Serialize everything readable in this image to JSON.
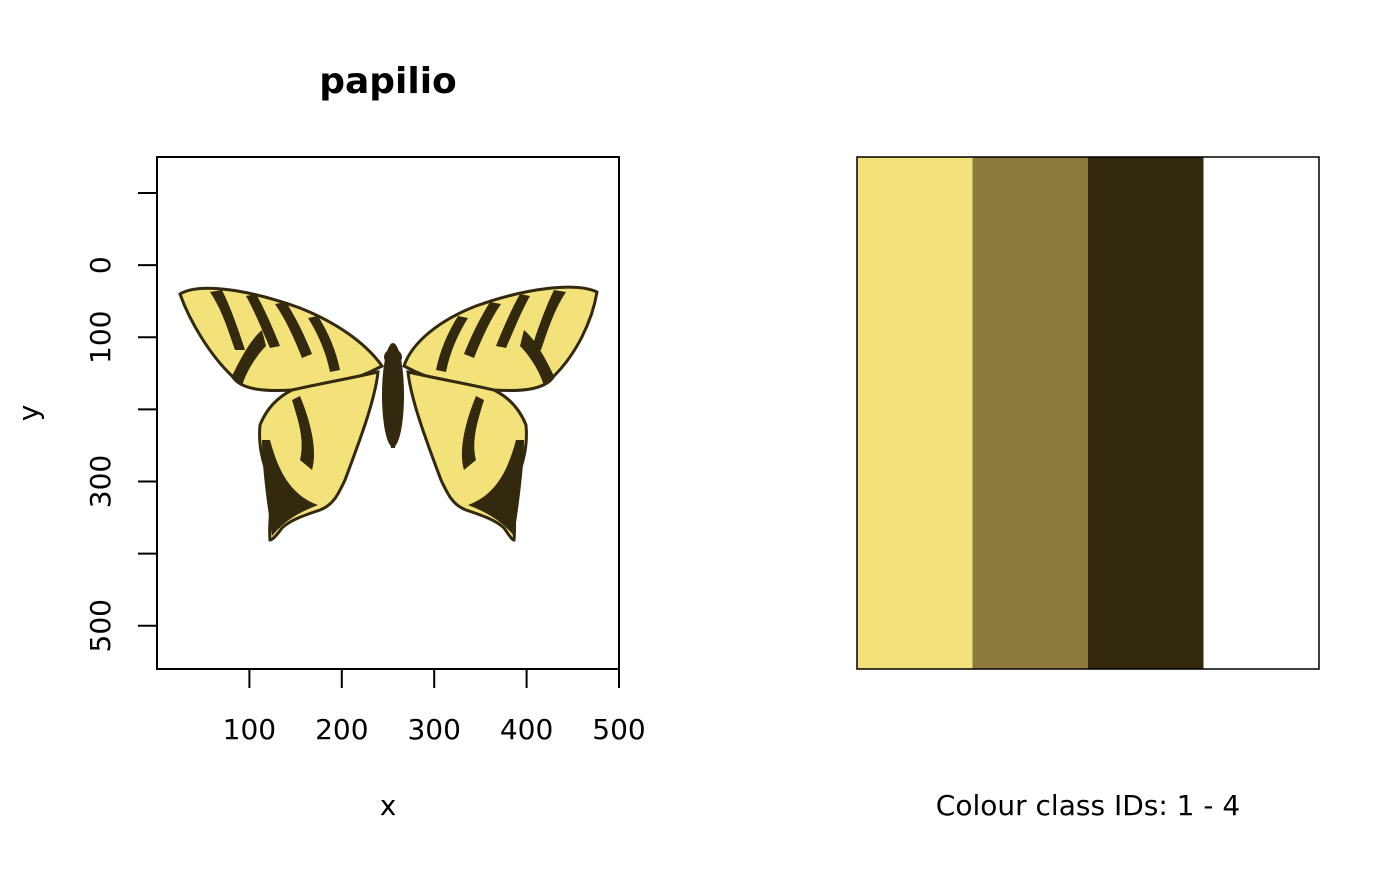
{
  "chart_data": [
    {
      "type": "image",
      "title": "papilio",
      "xlabel": "x",
      "ylabel": "y",
      "x_ticks": [
        100,
        200,
        300,
        400,
        500
      ],
      "y_ticks": [
        0,
        100,
        200,
        300,
        400,
        500
      ],
      "y_tick_labels": [
        "0",
        "100",
        "",
        "300",
        "",
        "500"
      ],
      "xlim": [
        0,
        500
      ],
      "ylim": [
        560,
        -150
      ],
      "image_extent": {
        "x": [
          0,
          500
        ],
        "y": [
          0,
          400
        ]
      },
      "palette": [
        "#f3e27a",
        "#8b793e",
        "#33290f",
        "#ffffff"
      ]
    },
    {
      "type": "palette",
      "xlabel": "Colour class IDs: 1 - 4",
      "colors": [
        "#f3e27a",
        "#8b793e",
        "#33290f",
        "#ffffff"
      ],
      "class_ids": [
        1,
        2,
        3,
        4
      ]
    }
  ]
}
